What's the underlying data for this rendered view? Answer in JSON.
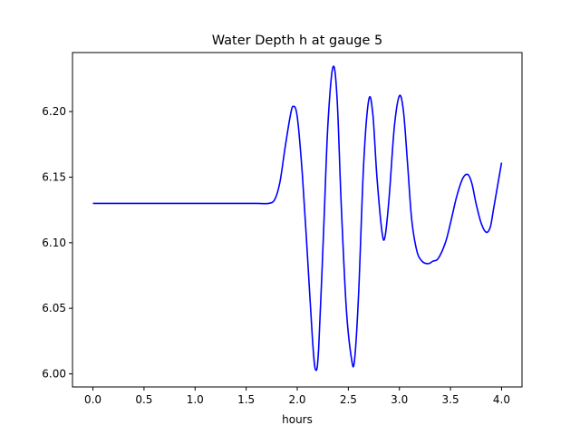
{
  "chart_data": {
    "type": "line",
    "title": "Water Depth h at gauge 5",
    "xlabel": "hours",
    "ylabel": "",
    "xlim": [
      -0.2,
      4.2
    ],
    "ylim": [
      5.99,
      6.245
    ],
    "xticks": [
      0.0,
      0.5,
      1.0,
      1.5,
      2.0,
      2.5,
      3.0,
      3.5,
      4.0
    ],
    "xtick_labels": [
      "0.0",
      "0.5",
      "1.0",
      "1.5",
      "2.0",
      "2.5",
      "3.0",
      "3.5",
      "4.0"
    ],
    "yticks": [
      6.0,
      6.05,
      6.1,
      6.15,
      6.2
    ],
    "ytick_labels": [
      "6.00",
      "6.05",
      "6.10",
      "6.15",
      "6.20"
    ],
    "grid": false,
    "legend": "none",
    "series": [
      {
        "color": "#0000ff",
        "x": [
          0.0,
          0.5,
          1.0,
          1.1,
          1.3,
          1.45,
          1.6,
          1.72,
          1.78,
          1.83,
          1.88,
          1.93,
          1.96,
          2.0,
          2.05,
          2.1,
          2.15,
          2.18,
          2.21,
          2.26,
          2.3,
          2.35,
          2.39,
          2.43,
          2.48,
          2.53,
          2.56,
          2.6,
          2.65,
          2.7,
          2.74,
          2.78,
          2.83,
          2.86,
          2.9,
          2.95,
          3.0,
          3.04,
          3.08,
          3.12,
          3.17,
          3.22,
          3.28,
          3.33,
          3.38,
          3.45,
          3.5,
          3.56,
          3.62,
          3.67,
          3.71,
          3.75,
          3.8,
          3.85,
          3.89,
          3.92,
          3.96,
          4.0
        ],
        "y": [
          6.13,
          6.13,
          6.13,
          6.13,
          6.13,
          6.13,
          6.13,
          6.13,
          6.133,
          6.146,
          6.172,
          6.196,
          6.204,
          6.196,
          6.152,
          6.09,
          6.025,
          6.003,
          6.02,
          6.113,
          6.19,
          6.234,
          6.21,
          6.13,
          6.05,
          6.012,
          6.01,
          6.06,
          6.16,
          6.209,
          6.198,
          6.15,
          6.108,
          6.105,
          6.135,
          6.188,
          6.212,
          6.2,
          6.16,
          6.118,
          6.094,
          6.086,
          6.084,
          6.086,
          6.088,
          6.1,
          6.115,
          6.135,
          6.149,
          6.152,
          6.145,
          6.13,
          6.115,
          6.108,
          6.112,
          6.125,
          6.143,
          6.161
        ]
      }
    ]
  }
}
